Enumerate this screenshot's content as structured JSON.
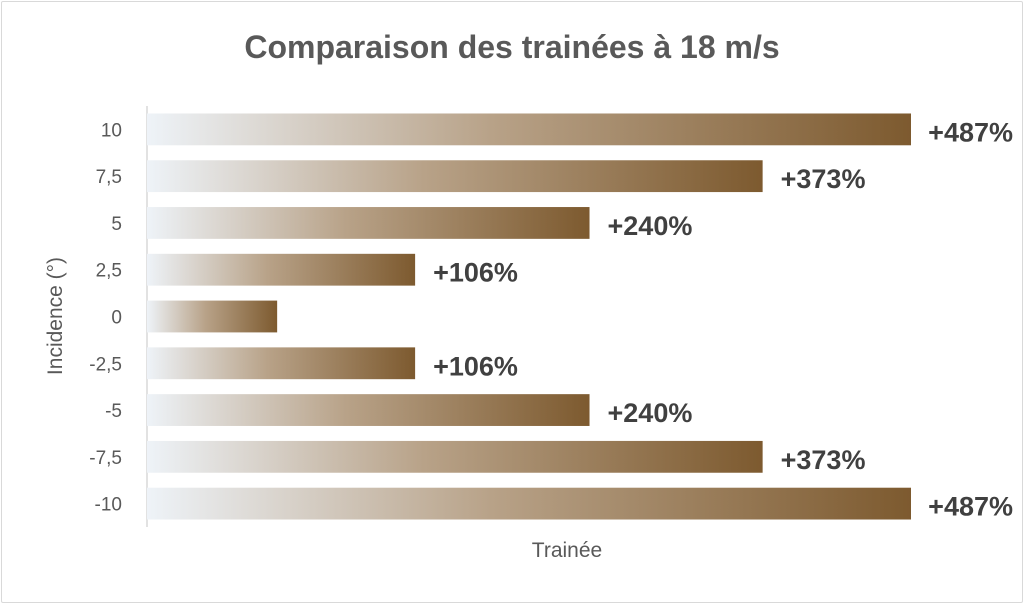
{
  "chart_data": {
    "type": "bar",
    "orientation": "horizontal",
    "title": "Comparaison des trainées à 18 m/s",
    "xlabel": "Trainée",
    "ylabel": "Incidence (°)",
    "categories": [
      "10",
      "7,5",
      "5",
      "2,5",
      "0",
      "-2,5",
      "-5",
      "-7,5",
      "-10"
    ],
    "values": [
      587,
      473,
      340,
      206,
      100,
      206,
      340,
      473,
      587
    ],
    "data_labels": [
      "+487%",
      "+373%",
      "+240%",
      "+106%",
      "",
      "+106%",
      "+240%",
      "+373%",
      "+487%"
    ],
    "xlim": [
      0,
      587
    ],
    "grid": false,
    "legend": "none",
    "colors": {
      "bar_start": "#eef3f8",
      "bar_mid": "#b8a288",
      "bar_end": "#7d5a2f",
      "axis": "#d9d9d9"
    }
  }
}
